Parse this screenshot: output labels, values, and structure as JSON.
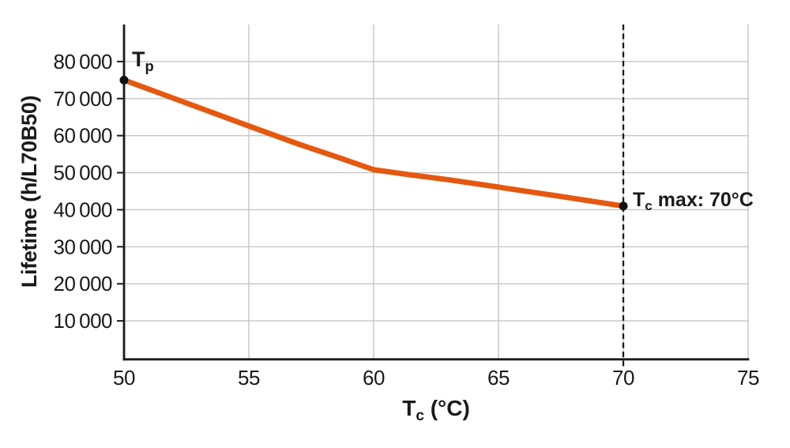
{
  "chart_data": {
    "type": "line",
    "title": "",
    "xlabel": {
      "main": "T",
      "sub": "c",
      "rest": " (°C)"
    },
    "ylabel": "Lifetime (h/L70B50)",
    "xlim": [
      50,
      75
    ],
    "ylim": [
      0,
      90000
    ],
    "x_ticks": [
      50,
      55,
      60,
      65,
      70,
      75
    ],
    "y_ticks": [
      10000,
      20000,
      30000,
      40000,
      50000,
      60000,
      70000,
      80000
    ],
    "y_tick_labels": [
      "10 000",
      "20 000",
      "30 000",
      "40 000",
      "50 000",
      "60 000",
      "70 000",
      "80 000"
    ],
    "grid": true,
    "legend": "none",
    "series": [
      {
        "name": "lifetime-vs-case-temperature",
        "color": "#E5580F",
        "points": [
          [
            50,
            75000
          ],
          [
            55,
            62600
          ],
          [
            57,
            57700
          ],
          [
            58.5,
            54300
          ],
          [
            60,
            50800
          ],
          [
            61.5,
            49400
          ],
          [
            63,
            48100
          ],
          [
            65,
            46100
          ],
          [
            67.5,
            43600
          ],
          [
            70,
            41000
          ]
        ]
      }
    ],
    "markers": [
      {
        "x": 50,
        "y": 75000
      },
      {
        "x": 70,
        "y": 41000
      }
    ],
    "reference_line": {
      "x": 70,
      "style": "dashed"
    },
    "annotations": [
      {
        "id": "tp",
        "main": "T",
        "sub": "p",
        "rest": ""
      },
      {
        "id": "tc-max",
        "main": "T",
        "sub": "c",
        "rest": " max: 70°C"
      }
    ]
  },
  "colors": {
    "line": "#E5580F",
    "axis": "#1a1a1a",
    "grid": "#c6c6c6",
    "marker": "#111111",
    "text": "#1a1a1a",
    "background": "#ffffff"
  }
}
